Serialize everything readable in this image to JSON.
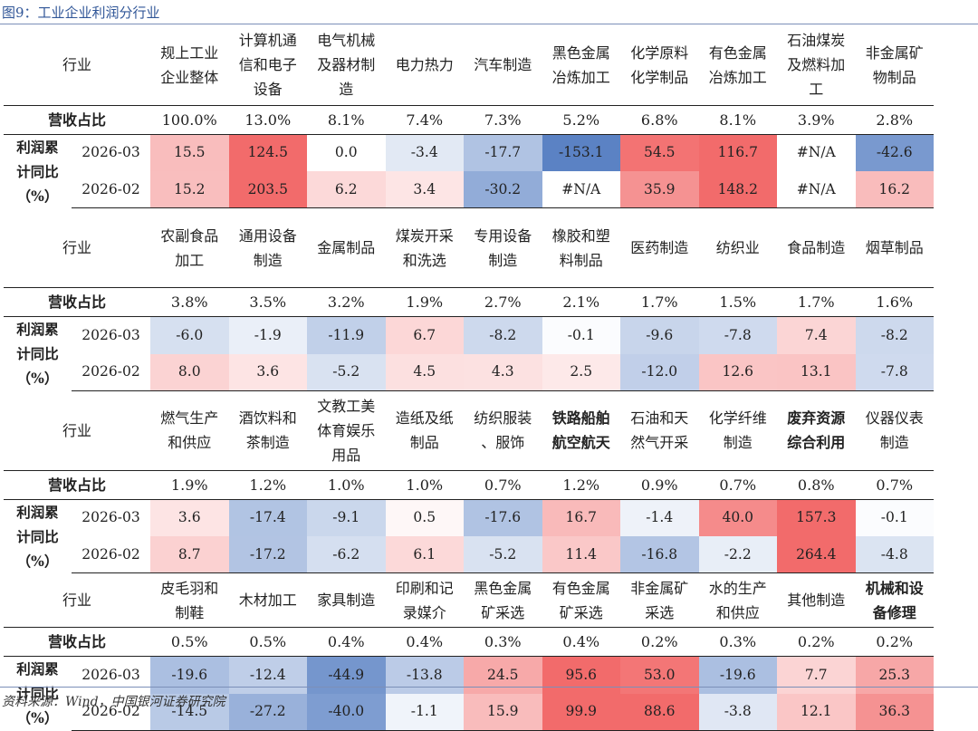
{
  "title": "图9：工业企业利润分行业",
  "source": "资料来源：Wind，中国银河证券研究院",
  "labels": {
    "industry": "行业",
    "revenue_share": "营收占比",
    "group_label_lines": [
      "利润累",
      "计同比",
      "（%）"
    ],
    "period1": "2026-03",
    "period2": "2026-02"
  },
  "chart_data": {
    "type": "table",
    "title": "图9：工业企业利润分行业",
    "periods": [
      "2026-03",
      "2026-02"
    ],
    "blocks": [
      {
        "industries": [
          {
            "name": "规上工业企业整体",
            "lines": [
              "规上工业",
              "企业整体"
            ],
            "share": "100.0%",
            "v1": "15.5",
            "v2": "15.2"
          },
          {
            "name": "计算机通信和电子设备",
            "lines": [
              "计算机通",
              "信和电子",
              "设备"
            ],
            "share": "13.0%",
            "v1": "124.5",
            "v2": "203.5"
          },
          {
            "name": "电气机械及器材制造",
            "lines": [
              "电气机械",
              "及器材制",
              "造"
            ],
            "share": "8.1%",
            "v1": "0.0",
            "v2": "6.2"
          },
          {
            "name": "电力热力",
            "lines": [
              "电力热力"
            ],
            "share": "7.4%",
            "v1": "-3.4",
            "v2": "3.4"
          },
          {
            "name": "汽车制造",
            "lines": [
              "汽车制造"
            ],
            "share": "7.3%",
            "v1": "-17.7",
            "v2": "-30.2"
          },
          {
            "name": "黑色金属冶炼加工",
            "lines": [
              "黑色金属",
              "冶炼加工"
            ],
            "share": "5.2%",
            "v1": "-153.1",
            "v2": "#N/A"
          },
          {
            "name": "化学原料化学制品",
            "lines": [
              "化学原料",
              "化学制品"
            ],
            "share": "6.8%",
            "v1": "54.5",
            "v2": "35.9"
          },
          {
            "name": "有色金属冶炼加工",
            "lines": [
              "有色金属",
              "冶炼加工"
            ],
            "share": "8.1%",
            "v1": "116.7",
            "v2": "148.2"
          },
          {
            "name": "石油煤炭及燃料加工",
            "lines": [
              "石油煤炭",
              "及燃料加",
              "工"
            ],
            "share": "3.9%",
            "v1": "#N/A",
            "v2": "#N/A"
          },
          {
            "name": "非金属矿物制品",
            "lines": [
              "非金属矿",
              "物制品"
            ],
            "share": "2.8%",
            "v1": "-42.6",
            "v2": "16.2"
          }
        ]
      },
      {
        "industries": [
          {
            "name": "农副食品加工",
            "lines": [
              "农副食品",
              "加工"
            ],
            "share": "3.8%",
            "v1": "-6.0",
            "v2": "8.0"
          },
          {
            "name": "通用设备制造",
            "lines": [
              "通用设备",
              "制造"
            ],
            "share": "3.5%",
            "v1": "-1.9",
            "v2": "3.6"
          },
          {
            "name": "金属制品",
            "lines": [
              "金属制品"
            ],
            "share": "3.2%",
            "v1": "-11.9",
            "v2": "-5.2"
          },
          {
            "name": "煤炭开采和洗选",
            "lines": [
              "煤炭开采",
              "和洗选"
            ],
            "share": "1.9%",
            "v1": "6.7",
            "v2": "4.5"
          },
          {
            "name": "专用设备制造",
            "lines": [
              "专用设备",
              "制造"
            ],
            "share": "2.7%",
            "v1": "-8.2",
            "v2": "4.3"
          },
          {
            "name": "橡胶和塑料制品",
            "lines": [
              "橡胶和塑",
              "料制品"
            ],
            "share": "2.1%",
            "v1": "-0.1",
            "v2": "2.5"
          },
          {
            "name": "医药制造",
            "lines": [
              "医药制造"
            ],
            "share": "1.7%",
            "v1": "-9.6",
            "v2": "-12.0"
          },
          {
            "name": "纺织业",
            "lines": [
              "纺织业"
            ],
            "share": "1.5%",
            "v1": "-7.8",
            "v2": "12.6"
          },
          {
            "name": "食品制造",
            "lines": [
              "食品制造"
            ],
            "share": "1.7%",
            "v1": "7.4",
            "v2": "13.1"
          },
          {
            "name": "烟草制品",
            "lines": [
              "烟草制品"
            ],
            "share": "1.6%",
            "v1": "-8.2",
            "v2": "-7.8"
          }
        ]
      },
      {
        "industries": [
          {
            "name": "燃气生产和供应",
            "lines": [
              "燃气生产",
              "和供应"
            ],
            "share": "1.9%",
            "v1": "3.6",
            "v2": "8.7"
          },
          {
            "name": "酒饮料和茶制造",
            "lines": [
              "酒饮料和",
              "茶制造"
            ],
            "share": "1.2%",
            "v1": "-17.4",
            "v2": "-17.2"
          },
          {
            "name": "文教工美体育娱乐用品",
            "lines": [
              "文教工美",
              "体育娱乐",
              "用品"
            ],
            "share": "1.0%",
            "v1": "-9.1",
            "v2": "-6.2"
          },
          {
            "name": "造纸及纸制品",
            "lines": [
              "造纸及纸",
              "制品"
            ],
            "share": "1.0%",
            "v1": "0.5",
            "v2": "6.1"
          },
          {
            "name": "纺织服装、服饰",
            "lines": [
              "纺织服装",
              "、服饰"
            ],
            "share": "0.7%",
            "v1": "-17.6",
            "v2": "-5.2"
          },
          {
            "name": "铁路船舶航空航天",
            "lines": [
              "铁路船舶",
              "航空航天"
            ],
            "share": "1.2%",
            "v1": "16.7",
            "v2": "11.4",
            "bold": true
          },
          {
            "name": "石油和天然气开采",
            "lines": [
              "石油和天",
              "然气开采"
            ],
            "share": "0.9%",
            "v1": "-1.4",
            "v2": "-16.8"
          },
          {
            "name": "化学纤维制造",
            "lines": [
              "化学纤维",
              "制造"
            ],
            "share": "0.7%",
            "v1": "40.0",
            "v2": "-2.2"
          },
          {
            "name": "废弃资源综合利用",
            "lines": [
              "废弃资源",
              "综合利用"
            ],
            "share": "0.8%",
            "v1": "157.3",
            "v2": "264.4",
            "bold": true
          },
          {
            "name": "仪器仪表制造",
            "lines": [
              "仪器仪表",
              "制造"
            ],
            "share": "0.7%",
            "v1": "-0.1",
            "v2": "-4.8"
          }
        ]
      },
      {
        "industries": [
          {
            "name": "皮毛羽和制鞋",
            "lines": [
              "皮毛羽和",
              "制鞋"
            ],
            "share": "0.5%",
            "v1": "-19.6",
            "v2": "-14.5"
          },
          {
            "name": "木材加工",
            "lines": [
              "木材加工"
            ],
            "share": "0.5%",
            "v1": "-12.4",
            "v2": "-27.2"
          },
          {
            "name": "家具制造",
            "lines": [
              "家具制造"
            ],
            "share": "0.4%",
            "v1": "-44.9",
            "v2": "-40.0"
          },
          {
            "name": "印刷和记录媒介",
            "lines": [
              "印刷和记",
              "录媒介"
            ],
            "share": "0.4%",
            "v1": "-13.8",
            "v2": "-1.1"
          },
          {
            "name": "黑色金属矿采选",
            "lines": [
              "黑色金属",
              "矿采选"
            ],
            "share": "0.3%",
            "v1": "24.5",
            "v2": "15.9"
          },
          {
            "name": "有色金属矿采选",
            "lines": [
              "有色金属",
              "矿采选"
            ],
            "share": "0.4%",
            "v1": "95.6",
            "v2": "99.9"
          },
          {
            "name": "非金属矿采选",
            "lines": [
              "非金属矿",
              "采选"
            ],
            "share": "0.2%",
            "v1": "53.0",
            "v2": "88.6"
          },
          {
            "name": "水的生产和供应",
            "lines": [
              "水的生产",
              "和供应"
            ],
            "share": "0.3%",
            "v1": "-19.6",
            "v2": "-3.8"
          },
          {
            "name": "其他制造",
            "lines": [
              "其他制造"
            ],
            "share": "0.2%",
            "v1": "7.7",
            "v2": "12.1"
          },
          {
            "name": "机械和设备修理",
            "lines": [
              "机械和设",
              "备修理"
            ],
            "share": "0.2%",
            "v1": "25.3",
            "v2": "36.3",
            "bold": true
          }
        ]
      }
    ]
  },
  "colors": {
    "title": "#2f5597",
    "positive_strong": "#f26b6b",
    "negative_strong": "#5b82c4",
    "neutral": "#ffffff",
    "comment_marker": "#2e7d32"
  }
}
